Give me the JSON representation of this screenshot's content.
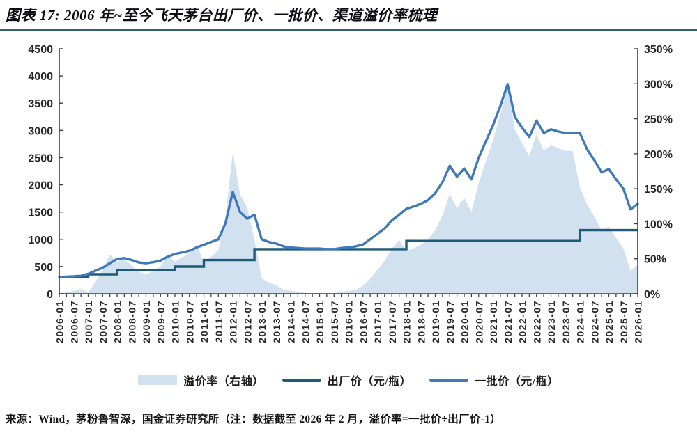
{
  "header": {
    "title": "图表 17: 2006 年~至今飞天茅台出厂价、一批价、渠道溢价率梳理"
  },
  "footer": {
    "source_note": "来源：Wind，茅粉鲁智深，国金证券研究所（注：数据截至 2026 年 2 月，溢价率=一批价÷出厂价-1）"
  },
  "colors": {
    "title_rule": "#35616f",
    "axis": "#3f3f3f",
    "tick_text": "#262626",
    "premium_area": "#d2e1f0",
    "factory_line": "#1d5c77",
    "batch_line": "#4079b8"
  },
  "chart_data": {
    "type": "area",
    "subtype": "combo: area (right axis, %) + step line + line (left axis, CNY/bottle)",
    "title": "2006年~至今飞天茅台出厂价、一批价、渠道溢价率梳理",
    "xlabel": "",
    "ylabel_left": "元/瓶",
    "ylabel_right": "%",
    "grid": false,
    "legend_position": "bottom-center",
    "left_axis": {
      "min": 0,
      "max": 4500,
      "step": 500,
      "tick_labels": [
        "0",
        "500",
        "1000",
        "1500",
        "2000",
        "2500",
        "3000",
        "3500",
        "4000",
        "4500"
      ]
    },
    "right_axis": {
      "min": 0,
      "max": 350,
      "step": 50,
      "tick_labels": [
        "0%",
        "50%",
        "100%",
        "150%",
        "200%",
        "250%",
        "300%",
        "350%"
      ]
    },
    "x_tick_labels": [
      "2006-01",
      "2006-07",
      "2007-01",
      "2007-07",
      "2008-01",
      "2008-07",
      "2009-01",
      "2009-07",
      "2010-01",
      "2010-07",
      "2011-01",
      "2011-07",
      "2012-01",
      "2012-07",
      "2013-01",
      "2013-07",
      "2014-01",
      "2014-07",
      "2015-01",
      "2015-07",
      "2016-01",
      "2016-07",
      "2017-01",
      "2017-07",
      "2018-01",
      "2018-07",
      "2019-01",
      "2019-07",
      "2020-01",
      "2020-07",
      "2021-01",
      "2021-07",
      "2022-01",
      "2022-07",
      "2023-01",
      "2023-07",
      "2024-01",
      "2024-07",
      "2025-01",
      "2025-07",
      "2026-01"
    ],
    "x": [
      "2006-01",
      "2006-04",
      "2006-07",
      "2006-10",
      "2007-01",
      "2007-04",
      "2007-07",
      "2007-10",
      "2008-01",
      "2008-04",
      "2008-07",
      "2008-10",
      "2009-01",
      "2009-04",
      "2009-07",
      "2009-10",
      "2010-01",
      "2010-04",
      "2010-07",
      "2010-10",
      "2011-01",
      "2011-04",
      "2011-07",
      "2011-10",
      "2012-01",
      "2012-04",
      "2012-07",
      "2012-10",
      "2013-01",
      "2013-04",
      "2013-07",
      "2013-10",
      "2014-01",
      "2014-04",
      "2014-07",
      "2014-10",
      "2015-01",
      "2015-04",
      "2015-07",
      "2015-10",
      "2016-01",
      "2016-04",
      "2016-07",
      "2016-10",
      "2017-01",
      "2017-04",
      "2017-07",
      "2017-10",
      "2018-01",
      "2018-04",
      "2018-07",
      "2018-10",
      "2019-01",
      "2019-04",
      "2019-07",
      "2019-10",
      "2020-01",
      "2020-04",
      "2020-07",
      "2020-10",
      "2021-01",
      "2021-04",
      "2021-07",
      "2021-10",
      "2022-01",
      "2022-04",
      "2022-07",
      "2022-10",
      "2023-01",
      "2023-04",
      "2023-07",
      "2023-10",
      "2024-01",
      "2024-04",
      "2024-07",
      "2024-10",
      "2025-01",
      "2025-04",
      "2025-07",
      "2025-10",
      "2026-01"
    ],
    "series": [
      {
        "name": "溢价率（右轴）",
        "type": "area",
        "axis": "right",
        "unit": "%",
        "color": "#d2e1f0",
        "values": [
          1,
          2,
          4,
          7,
          2,
          17,
          34,
          56,
          46,
          49,
          41,
          31,
          28,
          32,
          39,
          55,
          46,
          52,
          58,
          70,
          45,
          53,
          62,
          110,
          202,
          142,
          123,
          77,
          22,
          16,
          12,
          6,
          4,
          3,
          1,
          1,
          1,
          0,
          0,
          3,
          4,
          6,
          11,
          22,
          34,
          47,
          65,
          77,
          61,
          65,
          70,
          78,
          91,
          112,
          143,
          122,
          137,
          117,
          158,
          189,
          220,
          256,
          297,
          235,
          215,
          197,
          228,
          204,
          212,
          208,
          204,
          204,
          152,
          127,
          110,
          91,
          96,
          80,
          65,
          33,
          41
        ]
      },
      {
        "name": "出厂价（元/瓶）",
        "type": "step-line",
        "axis": "left",
        "unit": "元/瓶",
        "color": "#1d5c77",
        "values": [
          308,
          308,
          308,
          308,
          358,
          358,
          358,
          358,
          439,
          439,
          439,
          439,
          439,
          439,
          439,
          439,
          499,
          499,
          499,
          499,
          619,
          619,
          619,
          619,
          619,
          619,
          619,
          819,
          819,
          819,
          819,
          819,
          819,
          819,
          819,
          819,
          819,
          819,
          819,
          819,
          819,
          819,
          819,
          819,
          819,
          819,
          819,
          819,
          969,
          969,
          969,
          969,
          969,
          969,
          969,
          969,
          969,
          969,
          969,
          969,
          969,
          969,
          969,
          969,
          969,
          969,
          969,
          969,
          969,
          969,
          969,
          969,
          1169,
          1169,
          1169,
          1169,
          1169,
          1169,
          1169,
          1169,
          1169
        ]
      },
      {
        "name": "一批价（元/瓶）",
        "type": "line",
        "axis": "left",
        "unit": "元/瓶",
        "color": "#4079b8",
        "values": [
          310,
          315,
          320,
          330,
          365,
          420,
          480,
          560,
          640,
          655,
          620,
          575,
          560,
          580,
          610,
          680,
          730,
          760,
          790,
          850,
          900,
          950,
          1000,
          1300,
          1870,
          1500,
          1380,
          1450,
          1000,
          950,
          920,
          870,
          850,
          840,
          830,
          830,
          830,
          820,
          820,
          840,
          850,
          870,
          905,
          1000,
          1100,
          1200,
          1350,
          1450,
          1560,
          1600,
          1650,
          1720,
          1850,
          2050,
          2350,
          2150,
          2300,
          2100,
          2500,
          2800,
          3100,
          3450,
          3850,
          3250,
          3050,
          2880,
          3180,
          2950,
          3020,
          2980,
          2950,
          2950,
          2950,
          2650,
          2450,
          2230,
          2290,
          2100,
          1930,
          1550,
          1650
        ]
      }
    ]
  }
}
